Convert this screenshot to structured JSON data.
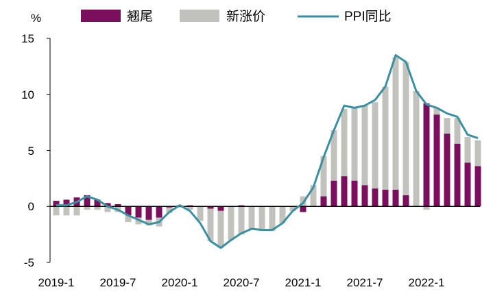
{
  "chart_data": {
    "type": "bar",
    "title": "",
    "xlabel": "",
    "ylabel": "%",
    "ylim": [
      -5,
      15
    ],
    "yticks": [
      "15",
      "10",
      "5",
      "0",
      "-5"
    ],
    "xtick_labels": [
      "2019-1",
      "2019-7",
      "2020-1",
      "2020-7",
      "2021-1",
      "2021-7",
      "2022-1"
    ],
    "categories": [
      "2019-1",
      "2019-2",
      "2019-3",
      "2019-4",
      "2019-5",
      "2019-6",
      "2019-7",
      "2019-8",
      "2019-9",
      "2019-10",
      "2019-11",
      "2019-12",
      "2020-1",
      "2020-2",
      "2020-3",
      "2020-4",
      "2020-5",
      "2020-6",
      "2020-7",
      "2020-8",
      "2020-9",
      "2020-10",
      "2020-11",
      "2020-12",
      "2021-1",
      "2021-2",
      "2021-3",
      "2021-4",
      "2021-5",
      "2021-6",
      "2021-7",
      "2021-8",
      "2021-9",
      "2021-10",
      "2021-11",
      "2021-12",
      "2022-1",
      "2022-2",
      "2022-3",
      "2022-4",
      "2022-5",
      "2022-6"
    ],
    "stacked": true,
    "legend_position": "top",
    "series": [
      {
        "name": "翘尾",
        "kind": "bar",
        "color": "#7b0f5e",
        "values": [
          0.5,
          0.6,
          0.8,
          1.0,
          0.6,
          0.3,
          0.2,
          -0.8,
          -1.0,
          -1.2,
          -1.0,
          -0.1,
          0.1,
          0.1,
          0.0,
          -0.2,
          -0.4,
          0.0,
          0.1,
          0.0,
          0.0,
          0.0,
          0.0,
          0.0,
          -0.5,
          0.0,
          0.9,
          2.3,
          2.7,
          2.3,
          1.9,
          1.6,
          1.5,
          1.5,
          1.0,
          0.0,
          9.2,
          8.2,
          6.5,
          5.6,
          3.9,
          3.6
        ]
      },
      {
        "name": "新涨价",
        "kind": "bar",
        "color": "#c2c2bc",
        "values": [
          -0.8,
          -0.8,
          -0.8,
          -0.3,
          -0.3,
          -0.5,
          -0.5,
          -0.6,
          -0.6,
          -0.5,
          -0.8,
          -0.5,
          -0.1,
          -0.3,
          -1.3,
          -2.9,
          -3.3,
          -3.0,
          -2.5,
          -2.0,
          -2.1,
          -2.2,
          -1.5,
          -0.4,
          0.9,
          1.9,
          3.6,
          4.5,
          6.0,
          6.5,
          7.1,
          7.7,
          9.2,
          11.8,
          11.9,
          10.3,
          -0.3,
          0.6,
          1.4,
          2.3,
          2.3,
          2.3
        ]
      },
      {
        "name": "PPI同比",
        "kind": "line",
        "color": "#3a8fa0",
        "values": [
          0.1,
          0.1,
          0.4,
          0.9,
          0.6,
          0.0,
          -0.3,
          -0.8,
          -1.2,
          -1.6,
          -1.4,
          -0.5,
          0.1,
          -0.4,
          -1.5,
          -3.1,
          -3.7,
          -3.0,
          -2.4,
          -2.0,
          -2.1,
          -2.1,
          -1.5,
          -0.4,
          0.3,
          1.7,
          4.4,
          6.8,
          9.0,
          8.8,
          9.0,
          9.5,
          10.7,
          13.5,
          12.9,
          10.3,
          9.1,
          8.8,
          8.3,
          8.0,
          6.4,
          6.1
        ]
      }
    ]
  }
}
